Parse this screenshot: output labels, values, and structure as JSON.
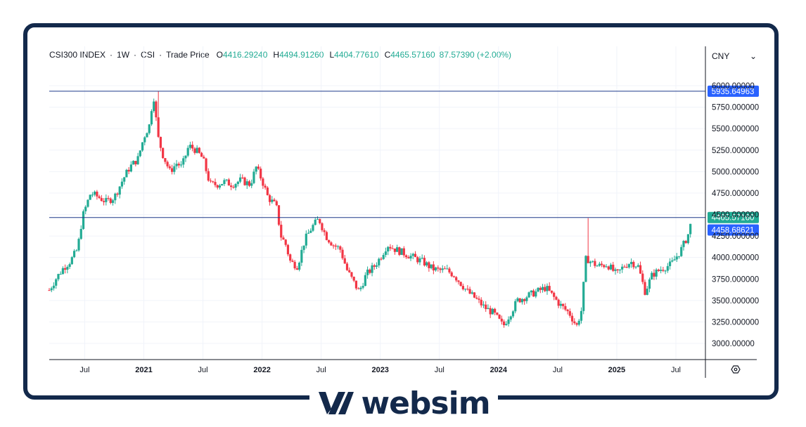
{
  "legend": {
    "symbol": "CSI300 INDEX",
    "interval": "1W",
    "exchange": "CSI",
    "price_type": "Trade Price",
    "o_label": "O",
    "o_value": "4416.29240",
    "h_label": "H",
    "h_value": "4494.91260",
    "l_label": "L",
    "l_value": "4404.77610",
    "c_label": "C",
    "c_value": "4465.57160",
    "change": "87.57390 (+2.00%)"
  },
  "currency": {
    "label": "CNY",
    "chevron": "⌄"
  },
  "settings_icon": "gear-icon",
  "brand": {
    "name": "websim"
  },
  "colors": {
    "up": "#22ab94",
    "down": "#f23645",
    "line": "#1e3a8a",
    "level_tag": "#2962ff",
    "last_tag": "#22ab94",
    "frame": "#13294b"
  },
  "chart_data": {
    "type": "candlestick",
    "ylim": [
      2800,
      6200
    ],
    "y_ticks": [
      "3000.00000",
      "3250.000000",
      "3500.000000",
      "3750.000000",
      "4000.000000",
      "4250.000000",
      "4500.000000",
      "4750.000000",
      "5000.000000",
      "5250.000000",
      "5500.000000",
      "5750.000000",
      "6000.00000"
    ],
    "x_ticks": [
      {
        "label": "Jul",
        "year": 2020,
        "major": false,
        "t": 2020.5
      },
      {
        "label": "2021",
        "major": true,
        "t": 2021.0
      },
      {
        "label": "Jul",
        "major": false,
        "t": 2021.5
      },
      {
        "label": "2022",
        "major": true,
        "t": 2022.0
      },
      {
        "label": "Jul",
        "major": false,
        "t": 2022.5
      },
      {
        "label": "2023",
        "major": true,
        "t": 2023.0
      },
      {
        "label": "Jul",
        "major": false,
        "t": 2023.5
      },
      {
        "label": "2024",
        "major": true,
        "t": 2024.0
      },
      {
        "label": "Jul",
        "major": false,
        "t": 2024.5
      },
      {
        "label": "2025",
        "major": true,
        "t": 2025.0
      },
      {
        "label": "Jul",
        "major": false,
        "t": 2025.5
      }
    ],
    "x_range": [
      2020.2,
      2025.75
    ],
    "horizontal_lines": [
      {
        "value": 5935.64963,
        "label": "5935.64963"
      },
      {
        "value": 4465.5716,
        "label": "4465.57160",
        "style": "last"
      },
      {
        "value": 4458.68621,
        "label": "4458.68621",
        "style": "level"
      }
    ],
    "price_path": [
      [
        2020.2,
        3620
      ],
      [
        2020.26,
        3760
      ],
      [
        2020.32,
        3880
      ],
      [
        2020.38,
        3960
      ],
      [
        2020.44,
        4100
      ],
      [
        2020.48,
        4470
      ],
      [
        2020.55,
        4750
      ],
      [
        2020.62,
        4700
      ],
      [
        2020.68,
        4650
      ],
      [
        2020.75,
        4700
      ],
      [
        2020.82,
        4900
      ],
      [
        2020.88,
        5050
      ],
      [
        2020.95,
        5150
      ],
      [
        2021.0,
        5400
      ],
      [
        2021.05,
        5550
      ],
      [
        2021.08,
        5920
      ],
      [
        2021.12,
        5400
      ],
      [
        2021.16,
        5200
      ],
      [
        2021.22,
        5000
      ],
      [
        2021.28,
        5100
      ],
      [
        2021.32,
        5050
      ],
      [
        2021.38,
        5300
      ],
      [
        2021.44,
        5250
      ],
      [
        2021.5,
        5150
      ],
      [
        2021.56,
        4850
      ],
      [
        2021.62,
        4850
      ],
      [
        2021.68,
        4880
      ],
      [
        2021.75,
        4850
      ],
      [
        2021.82,
        4900
      ],
      [
        2021.9,
        4850
      ],
      [
        2021.95,
        5050
      ],
      [
        2022.0,
        4900
      ],
      [
        2022.05,
        4700
      ],
      [
        2022.12,
        4600
      ],
      [
        2022.16,
        4250
      ],
      [
        2022.2,
        4150
      ],
      [
        2022.24,
        3950
      ],
      [
        2022.3,
        3900
      ],
      [
        2022.36,
        4200
      ],
      [
        2022.42,
        4350
      ],
      [
        2022.48,
        4450
      ],
      [
        2022.54,
        4250
      ],
      [
        2022.6,
        4150
      ],
      [
        2022.66,
        4100
      ],
      [
        2022.72,
        3850
      ],
      [
        2022.78,
        3700
      ],
      [
        2022.82,
        3600
      ],
      [
        2022.88,
        3800
      ],
      [
        2022.95,
        3900
      ],
      [
        2023.0,
        4000
      ],
      [
        2023.06,
        4150
      ],
      [
        2023.12,
        4100
      ],
      [
        2023.2,
        4050
      ],
      [
        2023.28,
        4000
      ],
      [
        2023.36,
        3950
      ],
      [
        2023.44,
        3870
      ],
      [
        2023.5,
        3850
      ],
      [
        2023.56,
        3850
      ],
      [
        2023.62,
        3800
      ],
      [
        2023.68,
        3700
      ],
      [
        2023.74,
        3600
      ],
      [
        2023.8,
        3530
      ],
      [
        2023.88,
        3420
      ],
      [
        2023.96,
        3350
      ],
      [
        2024.04,
        3200
      ],
      [
        2024.1,
        3350
      ],
      [
        2024.16,
        3500
      ],
      [
        2024.24,
        3550
      ],
      [
        2024.32,
        3600
      ],
      [
        2024.4,
        3650
      ],
      [
        2024.46,
        3550
      ],
      [
        2024.52,
        3450
      ],
      [
        2024.6,
        3350
      ],
      [
        2024.66,
        3200
      ],
      [
        2024.7,
        3380
      ],
      [
        2024.74,
        4000
      ],
      [
        2024.78,
        3950
      ],
      [
        2024.84,
        3900
      ],
      [
        2024.92,
        3920
      ],
      [
        2025.0,
        3800
      ],
      [
        2025.06,
        3900
      ],
      [
        2025.12,
        3950
      ],
      [
        2025.18,
        3900
      ],
      [
        2025.24,
        3600
      ],
      [
        2025.3,
        3800
      ],
      [
        2025.38,
        3870
      ],
      [
        2025.46,
        3920
      ],
      [
        2025.54,
        4080
      ],
      [
        2025.6,
        4250
      ],
      [
        2025.64,
        4465
      ]
    ],
    "wick_extremes": [
      {
        "t": 2021.12,
        "high": 5935.64
      },
      {
        "t": 2024.76,
        "high": 4458.68
      }
    ]
  }
}
